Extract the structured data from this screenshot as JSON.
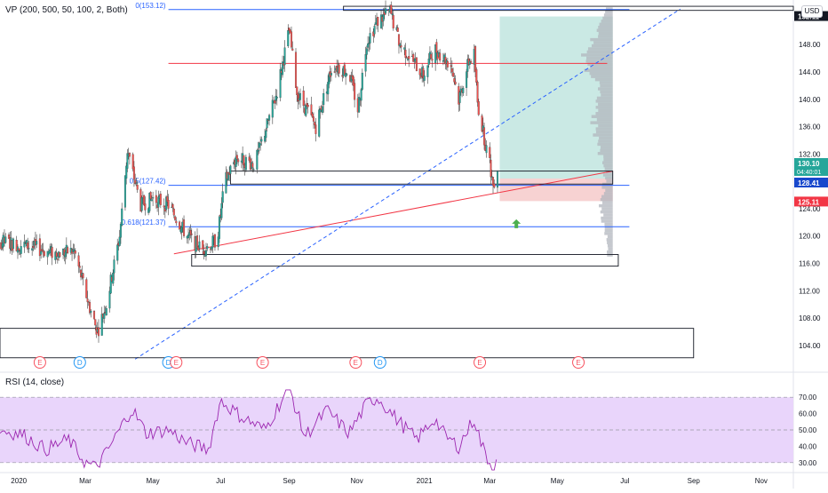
{
  "indicator_label": "VP (200, 500, 50, 100, 2, Both)",
  "rsi_label": "RSI (14, close)",
  "currency_button": "USD",
  "colors": {
    "up": "#26a69a",
    "down": "#ef5350",
    "candle_dark": "#404040",
    "fib_blue": "#2962ff",
    "trend_red": "#f23645",
    "rsi_line": "#9c27b0",
    "rsi_bg": "#e9d5fb",
    "profit_zone": "#bde3dd",
    "loss_zone": "#f6caca",
    "volume_profile": "#b2b5be",
    "price_tag_blue": "#1848cc",
    "price_tag_red": "#f23645",
    "price_tag_green": "#26a69a",
    "price_tag_dark": "#131722",
    "arrow_green": "#4caf50"
  },
  "chart_data": [
    {
      "type": "candlestick",
      "title": "",
      "x_tick_labels": [
        "2020",
        "Mar",
        "May",
        "Jul",
        "Sep",
        "Nov",
        "2021",
        "Mar",
        "May",
        "Jul",
        "Sep",
        "Nov"
      ],
      "y_tick_labels": [
        "152.00",
        "148.00",
        "144.00",
        "140.00",
        "136.00",
        "132.00",
        "128.00",
        "124.00",
        "120.00",
        "116.00",
        "112.00",
        "108.00",
        "104.00"
      ],
      "ylim": [
        101,
        154
      ],
      "x_range": [
        "2019-12-15",
        "2021-11-30"
      ],
      "price_series_dates_range": [
        "2019-12-15",
        "2021-03-08"
      ],
      "close_path_keypoints": [
        {
          "date": "2019-12-15",
          "close": 119.2
        },
        {
          "date": "2020-01-10",
          "close": 118.5
        },
        {
          "date": "2020-02-01",
          "close": 117.5
        },
        {
          "date": "2020-02-20",
          "close": 117.8
        },
        {
          "date": "2020-03-05",
          "close": 109.5
        },
        {
          "date": "2020-03-12",
          "close": 106.0
        },
        {
          "date": "2020-03-20",
          "close": 110.0
        },
        {
          "date": "2020-04-01",
          "close": 120.0
        },
        {
          "date": "2020-04-08",
          "close": 132.5
        },
        {
          "date": "2020-04-20",
          "close": 124.5
        },
        {
          "date": "2020-05-01",
          "close": 125.5
        },
        {
          "date": "2020-05-15",
          "close": 124.5
        },
        {
          "date": "2020-06-01",
          "close": 120.0
        },
        {
          "date": "2020-06-15",
          "close": 118.0
        },
        {
          "date": "2020-06-28",
          "close": 119.5
        },
        {
          "date": "2020-07-05",
          "close": 128.0
        },
        {
          "date": "2020-07-15",
          "close": 131.5
        },
        {
          "date": "2020-08-01",
          "close": 130.5
        },
        {
          "date": "2020-08-20",
          "close": 140.5
        },
        {
          "date": "2020-09-01",
          "close": 150.0
        },
        {
          "date": "2020-09-08",
          "close": 141.0
        },
        {
          "date": "2020-09-25",
          "close": 136.0
        },
        {
          "date": "2020-10-10",
          "close": 145.0
        },
        {
          "date": "2020-10-25",
          "close": 144.0
        },
        {
          "date": "2020-11-02",
          "close": 138.5
        },
        {
          "date": "2020-11-10",
          "close": 148.5
        },
        {
          "date": "2020-11-20",
          "close": 151.5
        },
        {
          "date": "2020-12-01",
          "close": 152.8
        },
        {
          "date": "2020-12-10",
          "close": 148.0
        },
        {
          "date": "2020-12-20",
          "close": 146.0
        },
        {
          "date": "2020-12-31",
          "close": 143.5
        },
        {
          "date": "2021-01-10",
          "close": 147.5
        },
        {
          "date": "2021-01-25",
          "close": 145.0
        },
        {
          "date": "2021-02-01",
          "close": 140.0
        },
        {
          "date": "2021-02-10",
          "close": 145.5
        },
        {
          "date": "2021-02-15",
          "close": 146.5
        },
        {
          "date": "2021-02-18",
          "close": 139.5
        },
        {
          "date": "2021-02-25",
          "close": 133.5
        },
        {
          "date": "2021-03-01",
          "close": 130.5
        },
        {
          "date": "2021-03-04",
          "close": 127.5
        },
        {
          "date": "2021-03-08",
          "close": 130.1
        }
      ],
      "price_tags": [
        {
          "label": "152.11",
          "value": 152.11,
          "color": "price_tag_dark"
        },
        {
          "label": "130.10",
          "value": 130.1,
          "color": "price_tag_green",
          "sub": "04:40:01"
        },
        {
          "label": "128.41",
          "value": 128.41,
          "color": "price_tag_blue"
        },
        {
          "label": "125.11",
          "value": 125.11,
          "color": "price_tag_red"
        }
      ],
      "fib_labels": [
        {
          "label": "0(153.12)",
          "value": 153.12
        },
        {
          "label": "0.5(127.42)",
          "value": 127.42
        },
        {
          "label": "0.618(121.37)",
          "value": 121.37
        }
      ],
      "horizontal_lines": [
        {
          "value": 145.25,
          "color": "trend_red",
          "from": "2020-05-15",
          "to": "2021-06-15"
        },
        {
          "value": 153.12,
          "color": "fib_blue",
          "from": "2020-05-15",
          "to": "2021-07-05"
        },
        {
          "value": 127.42,
          "color": "fib_blue",
          "from": "2020-05-15",
          "to": "2021-07-05"
        },
        {
          "value": 121.37,
          "color": "fib_blue",
          "from": "2020-05-15",
          "to": "2021-07-05"
        }
      ],
      "trend_lines": [
        {
          "color": "trend_red",
          "style": "solid",
          "from": {
            "date": "2020-05-20",
            "value": 117.4
          },
          "to": {
            "date": "2021-06-20",
            "value": 129.5
          }
        },
        {
          "color": "fib_blue",
          "style": "dashed",
          "from": {
            "date": "2020-04-15",
            "value": 102.0
          },
          "to": {
            "date": "2021-08-20",
            "value": 153.2
          }
        }
      ],
      "rectangles": [
        {
          "from": "2020-10-20",
          "to": "2021-11-30",
          "top": 153.6,
          "bottom": 153.0,
          "fill": "none"
        },
        {
          "from": "2020-07-10",
          "to": "2021-06-20",
          "top": 129.5,
          "bottom": 127.6,
          "fill": "none"
        },
        {
          "from": "2020-06-05",
          "to": "2021-06-25",
          "top": 117.3,
          "bottom": 115.6,
          "fill": "none"
        },
        {
          "from": "2019-12-15",
          "to": "2021-09-01",
          "top": 106.5,
          "bottom": 102.2,
          "fill": "none"
        }
      ],
      "position_tool": {
        "from": "2021-03-10",
        "to": "2021-06-20",
        "entry": 128.41,
        "target": 152.11,
        "stop": 125.11
      },
      "arrow_up": {
        "date": "2021-03-25",
        "value": 121.8
      },
      "event_markers": [
        {
          "label": "E",
          "date": "2020-01-20",
          "kind": "earnings"
        },
        {
          "label": "D",
          "date": "2020-02-25",
          "kind": "dividend"
        },
        {
          "label": "D",
          "date": "2020-05-15",
          "kind": "dividend"
        },
        {
          "label": "E",
          "date": "2020-05-22",
          "kind": "earnings"
        },
        {
          "label": "E",
          "date": "2020-08-08",
          "kind": "earnings"
        },
        {
          "label": "E",
          "date": "2020-10-31",
          "kind": "earnings"
        },
        {
          "label": "D",
          "date": "2020-11-22",
          "kind": "dividend"
        },
        {
          "label": "E",
          "date": "2021-02-20",
          "kind": "earnings"
        },
        {
          "label": "E",
          "date": "2021-05-20",
          "kind": "earnings"
        }
      ]
    },
    {
      "type": "line",
      "title": "",
      "y_tick_labels": [
        "70.00",
        "60.00",
        "50.00",
        "40.00",
        "30.00"
      ],
      "ylim": [
        25,
        75
      ],
      "band": [
        30,
        70
      ],
      "series_keypoints": [
        {
          "date": "2019-12-15",
          "value": 50
        },
        {
          "date": "2020-01-05",
          "value": 47
        },
        {
          "date": "2020-01-25",
          "value": 38
        },
        {
          "date": "2020-02-15",
          "value": 44
        },
        {
          "date": "2020-03-01",
          "value": 30
        },
        {
          "date": "2020-03-10",
          "value": 27
        },
        {
          "date": "2020-03-20",
          "value": 36
        },
        {
          "date": "2020-04-05",
          "value": 55
        },
        {
          "date": "2020-04-12",
          "value": 63
        },
        {
          "date": "2020-04-25",
          "value": 48
        },
        {
          "date": "2020-05-15",
          "value": 50
        },
        {
          "date": "2020-06-01",
          "value": 42
        },
        {
          "date": "2020-06-20",
          "value": 38
        },
        {
          "date": "2020-07-01",
          "value": 68
        },
        {
          "date": "2020-07-20",
          "value": 58
        },
        {
          "date": "2020-08-10",
          "value": 50
        },
        {
          "date": "2020-08-25",
          "value": 68
        },
        {
          "date": "2020-09-01",
          "value": 76
        },
        {
          "date": "2020-09-15",
          "value": 46
        },
        {
          "date": "2020-10-05",
          "value": 62
        },
        {
          "date": "2020-10-25",
          "value": 48
        },
        {
          "date": "2020-11-10",
          "value": 66
        },
        {
          "date": "2020-11-20",
          "value": 70
        },
        {
          "date": "2020-12-05",
          "value": 58
        },
        {
          "date": "2020-12-25",
          "value": 44
        },
        {
          "date": "2021-01-10",
          "value": 57
        },
        {
          "date": "2021-01-20",
          "value": 46
        },
        {
          "date": "2021-02-01",
          "value": 40
        },
        {
          "date": "2021-02-15",
          "value": 57
        },
        {
          "date": "2021-02-22",
          "value": 40
        },
        {
          "date": "2021-03-01",
          "value": 30
        },
        {
          "date": "2021-03-04",
          "value": 27
        },
        {
          "date": "2021-03-08",
          "value": 36
        }
      ]
    }
  ]
}
